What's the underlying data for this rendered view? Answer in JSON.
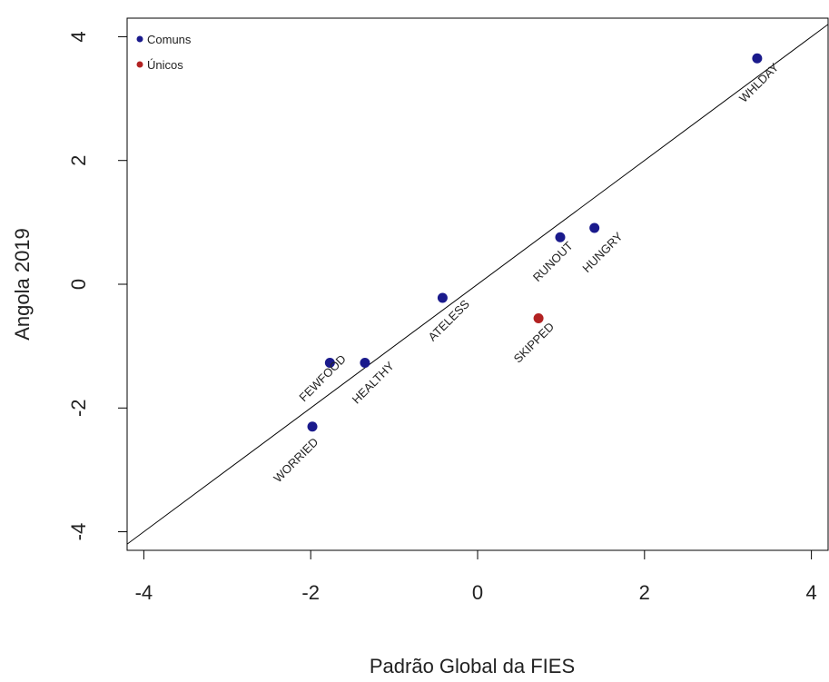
{
  "chart_data": {
    "type": "scatter",
    "title": "",
    "xlabel": "Padrão Global da FIES",
    "ylabel": "Angola 2019",
    "xlim": [
      -4.2,
      4.2
    ],
    "ylim": [
      -4.3,
      4.3
    ],
    "xticks": [
      -4,
      -2,
      0,
      2,
      4
    ],
    "yticks": [
      -4,
      -2,
      0,
      2,
      4
    ],
    "xtick_labels": [
      "-4",
      "-2",
      "0",
      "2",
      "4"
    ],
    "ytick_labels": [
      "-4",
      "-2",
      "0",
      "2",
      "4"
    ],
    "reference_line": {
      "slope": 1,
      "intercept": 0
    },
    "legend": {
      "placement": "top-left",
      "entries": [
        {
          "label": "Comuns",
          "color": "#1a1a8c"
        },
        {
          "label": "Únicos",
          "color": "#b22222"
        }
      ]
    },
    "colors": {
      "common": "#1a1a8c",
      "unique": "#b22222"
    },
    "points": [
      {
        "label": "WORRIED",
        "x": -1.98,
        "y": -2.3,
        "group": "common"
      },
      {
        "label": "HEALTHY",
        "x": -1.35,
        "y": -1.27,
        "group": "common"
      },
      {
        "label": "FEWFOOD",
        "x": -1.77,
        "y": -1.27,
        "group": "common"
      },
      {
        "label": "ATELESS",
        "x": -0.42,
        "y": -0.22,
        "group": "common"
      },
      {
        "label": "SKIPPED",
        "x": 0.73,
        "y": -0.55,
        "group": "unique"
      },
      {
        "label": "RUNOUT",
        "x": 0.99,
        "y": 0.76,
        "group": "common"
      },
      {
        "label": "HUNGRY",
        "x": 1.4,
        "y": 0.91,
        "group": "common"
      },
      {
        "label": "WHLDAY",
        "x": 3.35,
        "y": 3.65,
        "group": "common"
      }
    ]
  }
}
